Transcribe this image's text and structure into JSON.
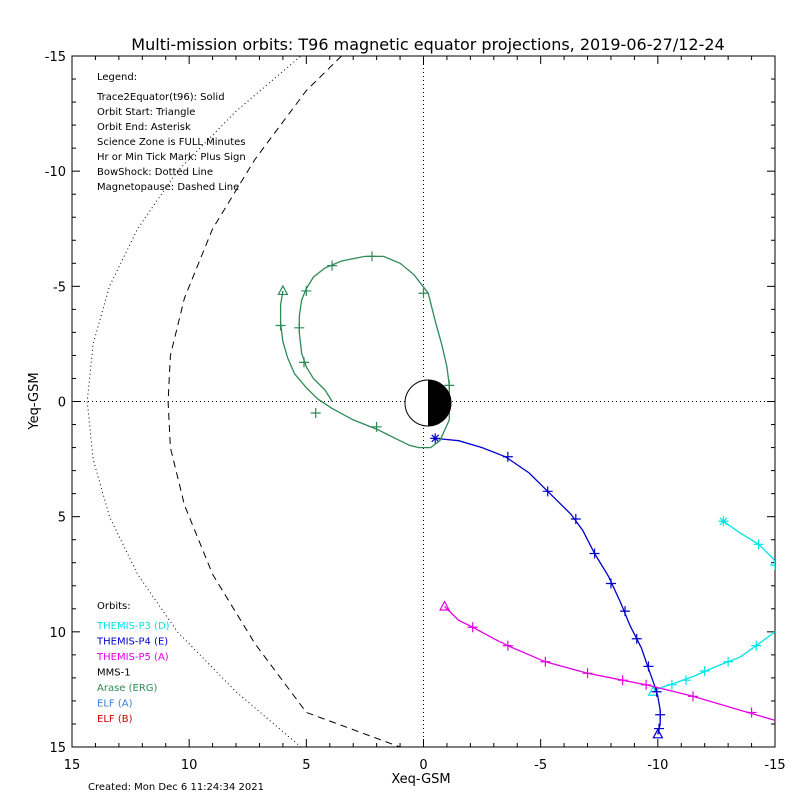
{
  "chart_data": {
    "type": "line",
    "title": "Multi-mission orbits: T96 magnetic equator projections, 2019-06-27/12-24",
    "xlabel": "Xeq-GSM",
    "ylabel": "Yeq-GSM",
    "xlim": [
      15,
      -15
    ],
    "ylim": [
      -15,
      15
    ],
    "x_ticks": [
      15,
      10,
      5,
      0,
      -5,
      -10,
      -15
    ],
    "x_tick_labels": [
      "15",
      "10",
      "5",
      "0",
      "-5",
      "-10",
      "-15"
    ],
    "y_ticks": [
      -15,
      -10,
      -5,
      0,
      5,
      10,
      15
    ],
    "y_tick_labels": [
      "-15",
      "-10",
      "-5",
      "0",
      "5",
      "10",
      "15"
    ],
    "legend_title": "Legend:",
    "legend_lines": [
      "Trace2Equator(t96): Solid",
      "Orbit Start: Triangle",
      "Orbit End: Asterisk",
      "Science Zone is FULL Minutes",
      "Hr or Min Tick Mark: Plus Sign",
      "BowShock: Dotted Line",
      "Magnetopause: Dashed Line"
    ],
    "orbits_title": "Orbits:",
    "orbit_legend": [
      {
        "label": "THEMIS-P3 (D)",
        "color": "#00e5e5"
      },
      {
        "label": "THEMIS-P4 (E)",
        "color": "#0000cc"
      },
      {
        "label": "THEMIS-P5 (A)",
        "color": "#e500e5"
      },
      {
        "label": "MMS-1",
        "color": "#000000"
      },
      {
        "label": "Arase (ERG)",
        "color": "#2e8b57"
      },
      {
        "label": "ELF (A)",
        "color": "#3a7fd5"
      },
      {
        "label": "ELF (B)",
        "color": "#cc0000"
      }
    ],
    "created": "Created: Mon Dec  6 11:24:34 2021",
    "bowshock": [
      [
        5,
        -15.2
      ],
      [
        8,
        -12.6
      ],
      [
        10.5,
        -10
      ],
      [
        12.2,
        -7.5
      ],
      [
        13.4,
        -5
      ],
      [
        14.1,
        -2.5
      ],
      [
        14.35,
        0
      ],
      [
        14.1,
        2.5
      ],
      [
        13.4,
        5
      ],
      [
        12.2,
        7.5
      ],
      [
        10.5,
        10
      ],
      [
        8,
        12.6
      ],
      [
        5,
        15.2
      ]
    ],
    "magnetopause": [
      [
        3.5,
        -15
      ],
      [
        5,
        -13.5
      ],
      [
        7.2,
        -10.5
      ],
      [
        9,
        -7.5
      ],
      [
        10.2,
        -4.5
      ],
      [
        10.8,
        -2
      ],
      [
        10.9,
        0
      ],
      [
        10.8,
        2
      ],
      [
        10.2,
        4.5
      ],
      [
        9,
        7.5
      ],
      [
        7.2,
        10.5
      ],
      [
        5,
        13.5
      ],
      [
        1,
        15
      ]
    ],
    "series": [
      {
        "name": "THEMIS-P3 (D)",
        "color": "#00e5e5",
        "segments": [
          [
            [
              -12.8,
              5.2
            ],
            [
              -13.5,
              5.7
            ],
            [
              -14.3,
              6.2
            ],
            [
              -14.9,
              6.8
            ],
            [
              -15.3,
              7.4
            ],
            [
              -15.6,
              8.0
            ],
            [
              -15.7,
              8.6
            ]
          ],
          [
            [
              -15.4,
              9.4
            ],
            [
              -15,
              10.0
            ],
            [
              -14.2,
              10.6
            ],
            [
              -13.5,
              11.1
            ],
            [
              -12.5,
              11.5
            ],
            [
              -11.6,
              11.9
            ],
            [
              -10.8,
              12.2
            ],
            [
              -10.2,
              12.4
            ],
            [
              -9.8,
              12.6
            ]
          ]
        ],
        "ticks": [
          [
            -14.3,
            6.2
          ],
          [
            -15,
            7.1
          ],
          [
            -15.6,
            8.0
          ],
          [
            -15.6,
            8.7
          ],
          [
            -15.4,
            9.4
          ],
          [
            -14.2,
            10.6
          ],
          [
            -13.0,
            11.3
          ],
          [
            -12.0,
            11.7
          ],
          [
            -11.2,
            12.1
          ],
          [
            -10.6,
            12.3
          ]
        ],
        "start": [
          -9.8,
          12.6
        ],
        "end": [
          -12.8,
          5.2
        ]
      },
      {
        "name": "THEMIS-P4 (E)",
        "color": "#0000cc",
        "segments": [
          [
            [
              -0.5,
              1.6
            ],
            [
              -1.5,
              1.7
            ],
            [
              -2.5,
              2.0
            ],
            [
              -3.5,
              2.4
            ],
            [
              -4.5,
              3.1
            ],
            [
              -5.3,
              3.9
            ],
            [
              -6.3,
              4.9
            ],
            [
              -6.8,
              5.6
            ],
            [
              -7.3,
              6.6
            ],
            [
              -7.9,
              7.6
            ],
            [
              -8.4,
              8.7
            ],
            [
              -8.8,
              9.7
            ],
            [
              -9.3,
              10.7
            ],
            [
              -9.6,
              11.6
            ],
            [
              -9.85,
              12.3
            ],
            [
              -10.0,
              12.8
            ],
            [
              -10.1,
              13.4
            ],
            [
              -10.1,
              14.0
            ],
            [
              -10.0,
              14.45
            ]
          ]
        ],
        "ticks": [
          [
            -3.6,
            2.4
          ],
          [
            -5.3,
            3.9
          ],
          [
            -6.5,
            5.1
          ],
          [
            -7.3,
            6.6
          ],
          [
            -8.0,
            7.9
          ],
          [
            -8.6,
            9.1
          ],
          [
            -9.1,
            10.3
          ],
          [
            -9.6,
            11.5
          ],
          [
            -9.95,
            12.6
          ],
          [
            -10.1,
            13.6
          ],
          [
            -10.05,
            14.2
          ]
        ],
        "start": [
          -10.0,
          14.45
        ],
        "end": [
          -0.5,
          1.6
        ]
      },
      {
        "name": "THEMIS-P5 (A)",
        "color": "#e500e5",
        "segments": [
          [
            [
              -0.9,
              8.9
            ],
            [
              -1.5,
              9.5
            ],
            [
              -2.1,
              9.8
            ],
            [
              -3,
              10.3
            ],
            [
              -3.6,
              10.6
            ],
            [
              -5.2,
              11.3
            ],
            [
              -7,
              11.8
            ],
            [
              -8.5,
              12.1
            ],
            [
              -9.5,
              12.3
            ],
            [
              -11.5,
              12.8
            ],
            [
              -13.5,
              13.4
            ],
            [
              -15.2,
              13.9
            ]
          ]
        ],
        "ticks": [
          [
            -2.1,
            9.8
          ],
          [
            -3.6,
            10.6
          ],
          [
            -5.2,
            11.3
          ],
          [
            -7.0,
            11.8
          ],
          [
            -8.5,
            12.1
          ],
          [
            -9.5,
            12.3
          ],
          [
            -11.5,
            12.8
          ],
          [
            -14,
            13.5
          ]
        ],
        "start": [
          -0.9,
          8.9
        ],
        "end": null
      },
      {
        "name": "Arase (ERG)",
        "color": "#2e8b57",
        "segments": [
          [
            [
              6.0,
              -4.8
            ],
            [
              6.1,
              -4.2
            ],
            [
              6.1,
              -3.4
            ],
            [
              6.0,
              -2.6
            ],
            [
              5.8,
              -1.9
            ],
            [
              5.5,
              -1.2
            ],
            [
              5.0,
              -0.6
            ],
            [
              4.5,
              -0.1
            ],
            [
              3.9,
              0.3
            ],
            [
              3.0,
              0.8
            ],
            [
              2.0,
              1.2
            ],
            [
              1.2,
              1.6
            ],
            [
              0.6,
              1.9
            ],
            [
              0.2,
              2.0
            ],
            [
              -0.3,
              2.0
            ],
            [
              -0.7,
              1.7
            ],
            [
              -1.1,
              0.8
            ],
            [
              -1.1,
              -0.7
            ],
            [
              -1.0,
              -1.5
            ],
            [
              -0.8,
              -2.4
            ],
            [
              -0.5,
              -3.5
            ],
            [
              -0.2,
              -4.7
            ],
            [
              0.4,
              -5.5
            ],
            [
              1.0,
              -6.0
            ],
            [
              1.7,
              -6.3
            ],
            [
              2.5,
              -6.3
            ],
            [
              3.5,
              -6.1
            ],
            [
              4.2,
              -5.8
            ],
            [
              4.7,
              -5.4
            ],
            [
              5.0,
              -4.9
            ],
            [
              5.2,
              -4.4
            ],
            [
              5.3,
              -3.7
            ],
            [
              5.3,
              -3.0
            ],
            [
              5.2,
              -2.1
            ],
            [
              5.0,
              -1.5
            ],
            [
              4.7,
              -1.0
            ],
            [
              4.2,
              -0.5
            ],
            [
              3.9,
              0.0
            ]
          ]
        ],
        "ticks": [
          [
            6.1,
            -3.3
          ],
          [
            5.3,
            -3.2
          ],
          [
            5.1,
            -1.7
          ],
          [
            4.6,
            0.5
          ],
          [
            2.0,
            1.1
          ],
          [
            -1.1,
            -0.7
          ],
          [
            0.0,
            -4.7
          ],
          [
            2.2,
            -6.3
          ],
          [
            3.9,
            -5.9
          ],
          [
            5.0,
            -4.8
          ]
        ],
        "start": [
          6.0,
          -4.8
        ],
        "end": null
      }
    ]
  }
}
